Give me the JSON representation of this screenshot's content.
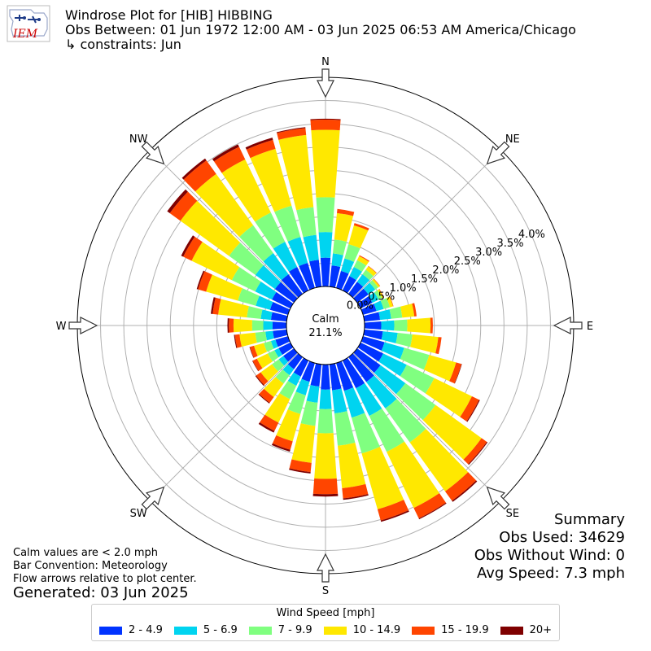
{
  "logo": {
    "text": "IEM",
    "color": "#cc0000",
    "mark_color": "#1f3c88"
  },
  "header": {
    "title": "Windrose Plot for [HIB] HIBBING",
    "subtitle": "Obs Between: 01 Jun 1972 12:00 AM - 03 Jun 2025 06:53 AM America/Chicago",
    "constraints": "↳ constraints: Jun"
  },
  "notes": {
    "calm": "Calm values are < 2.0 mph",
    "bar_convention": "Bar Convention: Meteorology",
    "flow": "Flow arrows relative to plot center.",
    "generated": "Generated: 03 Jun 2025"
  },
  "summary": {
    "heading": "Summary",
    "obs_used": "Obs Used: 34629",
    "obs_without_wind": "Obs Without Wind: 0",
    "avg_speed": "Avg Speed: 7.3 mph"
  },
  "legend": {
    "title": "Wind Speed [mph]",
    "items": [
      {
        "label": "2 - 4.9",
        "color": "#0033ff"
      },
      {
        "label": "5 - 6.9",
        "color": "#00d4f0"
      },
      {
        "label": "7 - 9.9",
        "color": "#80ff80"
      },
      {
        "label": "10 - 14.9",
        "color": "#ffe800"
      },
      {
        "label": "15 - 19.9",
        "color": "#ff4500"
      },
      {
        "label": "20+",
        "color": "#7f0000"
      }
    ]
  },
  "chart_data": {
    "type": "windrose",
    "calm_label": "Calm",
    "calm_value": "21.1%",
    "radial_ticks": [
      "0.0%",
      "0.5%",
      "1.0%",
      "1.5%",
      "2.0%",
      "2.5%",
      "3.0%",
      "3.5%",
      "4.0%"
    ],
    "radial_max": 4.5,
    "grid": true,
    "compass_labels": [
      "N",
      "NE",
      "E",
      "SE",
      "S",
      "SW",
      "W",
      "NW"
    ],
    "direction_step_deg": 10,
    "direction_start_deg": 0,
    "series_names": [
      "2 - 4.9",
      "5 - 6.9",
      "7 - 9.9",
      "10 - 14.9",
      "15 - 19.9",
      "20+"
    ],
    "values": [
      [
        0.62,
        0.55,
        0.75,
        1.45,
        0.22,
        0.02
      ],
      [
        0.46,
        0.26,
        0.3,
        0.57,
        0.09,
        0.0
      ],
      [
        0.38,
        0.28,
        0.32,
        0.42,
        0.05,
        0.0
      ],
      [
        0.34,
        0.22,
        0.16,
        0.1,
        0.02,
        0.0
      ],
      [
        0.32,
        0.2,
        0.12,
        0.09,
        0.01,
        0.0
      ],
      [
        0.3,
        0.18,
        0.08,
        0.04,
        0.01,
        0.0
      ],
      [
        0.28,
        0.15,
        0.08,
        0.04,
        0.01,
        0.0
      ],
      [
        0.3,
        0.16,
        0.14,
        0.07,
        0.01,
        0.0
      ],
      [
        0.34,
        0.24,
        0.24,
        0.26,
        0.05,
        0.0
      ],
      [
        0.36,
        0.28,
        0.28,
        0.5,
        0.05,
        0.0
      ],
      [
        0.4,
        0.32,
        0.32,
        0.56,
        0.07,
        0.0
      ],
      [
        0.48,
        0.44,
        0.56,
        0.6,
        0.12,
        0.01
      ],
      [
        0.54,
        0.56,
        0.66,
        0.9,
        0.17,
        0.02
      ],
      [
        0.62,
        0.66,
        0.8,
        1.22,
        0.14,
        0.02
      ],
      [
        0.66,
        0.7,
        0.9,
        1.3,
        0.25,
        0.03
      ],
      [
        0.66,
        0.66,
        0.86,
        1.34,
        0.25,
        0.02
      ],
      [
        0.62,
        0.6,
        0.8,
        1.25,
        0.25,
        0.03
      ],
      [
        0.56,
        0.5,
        0.7,
        0.92,
        0.22,
        0.03
      ],
      [
        0.54,
        0.42,
        0.52,
        0.98,
        0.33,
        0.05
      ],
      [
        0.48,
        0.35,
        0.5,
        0.8,
        0.2,
        0.03
      ],
      [
        0.42,
        0.3,
        0.42,
        0.61,
        0.19,
        0.04
      ],
      [
        0.38,
        0.22,
        0.32,
        0.56,
        0.2,
        0.04
      ],
      [
        0.32,
        0.16,
        0.22,
        0.36,
        0.15,
        0.02
      ],
      [
        0.28,
        0.12,
        0.18,
        0.3,
        0.12,
        0.02
      ],
      [
        0.28,
        0.1,
        0.16,
        0.26,
        0.1,
        0.01
      ],
      [
        0.28,
        0.1,
        0.16,
        0.22,
        0.09,
        0.01
      ],
      [
        0.3,
        0.16,
        0.22,
        0.34,
        0.1,
        0.02
      ],
      [
        0.3,
        0.2,
        0.24,
        0.4,
        0.1,
        0.03
      ],
      [
        0.34,
        0.22,
        0.3,
        0.62,
        0.12,
        0.04
      ],
      [
        0.4,
        0.32,
        0.4,
        0.71,
        0.18,
        0.03
      ],
      [
        0.44,
        0.4,
        0.56,
        0.96,
        0.2,
        0.05
      ],
      [
        0.5,
        0.52,
        0.7,
        1.29,
        0.28,
        0.07
      ],
      [
        0.52,
        0.56,
        0.74,
        1.36,
        0.36,
        0.05
      ],
      [
        0.56,
        0.6,
        0.7,
        1.27,
        0.3,
        0.06
      ],
      [
        0.56,
        0.58,
        0.7,
        1.27,
        0.2,
        0.05
      ],
      [
        0.58,
        0.54,
        0.6,
        1.56,
        0.15,
        0.02
      ]
    ]
  }
}
